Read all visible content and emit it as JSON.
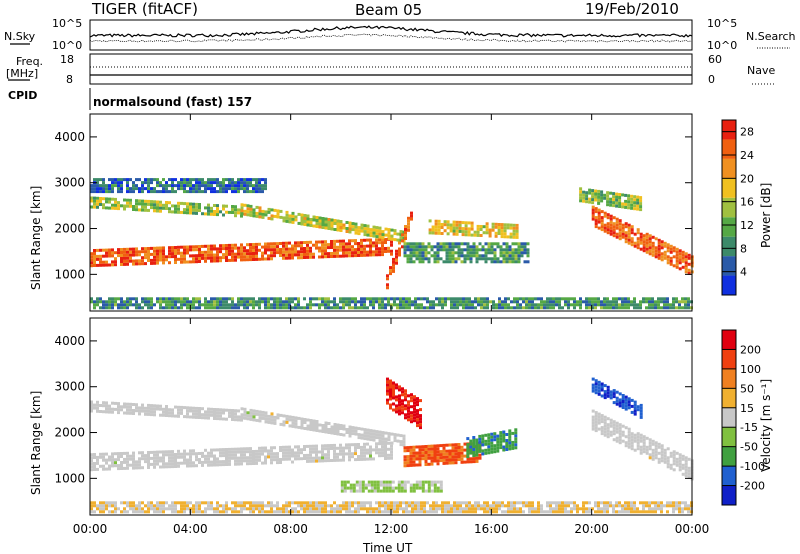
{
  "header": {
    "radar": "TIGER (fitACF)",
    "beam": "Beam 05",
    "date": "19/Feb/2010"
  },
  "params": {
    "nsky_label": "N.Sky",
    "nsky_ticks": [
      "10^5",
      "10^0"
    ],
    "nsearch_label": "N.Search",
    "nsearch_ticks": [
      "10^5",
      "10^0"
    ],
    "freq_label": "Freq.",
    "freq_unit": "[MHz]",
    "freq_ticks": [
      "18",
      "8"
    ],
    "nave_label": "Nave",
    "nave_ticks": [
      "60",
      "0"
    ],
    "cpid_label": "CPID",
    "cpid_value": "normalsound (fast) 157"
  },
  "colors": {
    "power_scale": [
      "#1030e0",
      "#2a5aa8",
      "#3c8a6a",
      "#55a845",
      "#a0c040",
      "#f0c020",
      "#f09020",
      "#f06010",
      "#e82010"
    ],
    "velocity_scale": [
      "#1020c8",
      "#2060d0",
      "#40a040",
      "#80c040",
      "#c8c8c8",
      "#f0b030",
      "#f08020",
      "#f04010",
      "#e00010"
    ]
  },
  "chart_data": [
    {
      "type": "heatmap",
      "panel": "power",
      "ylabel": "Slant Range [km]",
      "ylim": [
        200,
        4500
      ],
      "yticks": [
        "1000",
        "2000",
        "3000",
        "4000"
      ],
      "xlim_hours": [
        0,
        24
      ],
      "colorbar": {
        "label": "Power [dB]",
        "ticks": [
          "4",
          "8",
          "12",
          "16",
          "20",
          "24",
          "28"
        ],
        "range": [
          0,
          30
        ]
      },
      "bands": [
        {
          "t": [
            0,
            12
          ],
          "r_start": [
            1200,
            1450
          ],
          "width": 350,
          "value": 25
        },
        {
          "t": [
            0,
            6
          ],
          "r_start": [
            2500,
            2300
          ],
          "width": 200,
          "value": 14
        },
        {
          "t": [
            6,
            12.5
          ],
          "r_start": [
            2300,
            1700
          ],
          "width": 250,
          "value": 16
        },
        {
          "t": [
            11.8,
            12.8
          ],
          "r_start": [
            700,
            2200
          ],
          "width": 300,
          "value": 27
        },
        {
          "t": [
            12.5,
            17.5
          ],
          "r_start": [
            1300,
            1300
          ],
          "width": 400,
          "value": 10
        },
        {
          "t": [
            13.5,
            17
          ],
          "r_start": [
            1900,
            1800
          ],
          "width": 300,
          "value": 18
        },
        {
          "t": [
            20,
            24
          ],
          "r_start": [
            2100,
            1000
          ],
          "width": 400,
          "value": 25
        },
        {
          "t": [
            19.5,
            22
          ],
          "r_start": [
            2600,
            2400
          ],
          "width": 300,
          "value": 13
        },
        {
          "t": [
            0,
            24
          ],
          "r_start": [
            250,
            250
          ],
          "width": 250,
          "value": 9
        },
        {
          "t": [
            0,
            7
          ],
          "r_start": [
            2800,
            2800
          ],
          "width": 300,
          "value": 6
        }
      ]
    },
    {
      "type": "heatmap",
      "panel": "velocity",
      "ylabel": "Slant Range [km]",
      "ylim": [
        200,
        4500
      ],
      "yticks": [
        "1000",
        "2000",
        "3000",
        "4000"
      ],
      "xlim_hours": [
        0,
        24
      ],
      "xlabel": "Time UT",
      "xticks": [
        "00:00",
        "04:00",
        "08:00",
        "12:00",
        "16:00",
        "20:00",
        "00:00"
      ],
      "colorbar": {
        "label": "Velocity [m s⁻¹]",
        "ticks": [
          "200",
          "100",
          "50",
          "15",
          "-15",
          "-50",
          "-100",
          "-200"
        ],
        "range": [
          -250,
          250
        ]
      },
      "bands": [
        {
          "t": [
            0,
            12
          ],
          "r_start": [
            1200,
            1450
          ],
          "width": 350,
          "value": 0
        },
        {
          "t": [
            0,
            6
          ],
          "r_start": [
            2500,
            2300
          ],
          "width": 200,
          "value": 0
        },
        {
          "t": [
            6,
            12.5
          ],
          "r_start": [
            2300,
            1700
          ],
          "width": 250,
          "value": 0
        },
        {
          "t": [
            11.8,
            13.2
          ],
          "r_start": [
            2600,
            2100
          ],
          "width": 600,
          "value": 200
        },
        {
          "t": [
            12.5,
            15.5
          ],
          "r_start": [
            1300,
            1400
          ],
          "width": 400,
          "value": 150
        },
        {
          "t": [
            15,
            17
          ],
          "r_start": [
            1500,
            1700
          ],
          "width": 400,
          "value": -120
        },
        {
          "t": [
            20,
            24
          ],
          "r_start": [
            2100,
            1000
          ],
          "width": 400,
          "value": 0
        },
        {
          "t": [
            20,
            22
          ],
          "r_start": [
            2900,
            2300
          ],
          "width": 300,
          "value": -180
        },
        {
          "t": [
            0,
            24
          ],
          "r_start": [
            250,
            250
          ],
          "width": 250,
          "value": 30
        },
        {
          "t": [
            10,
            14
          ],
          "r_start": [
            700,
            700
          ],
          "width": 250,
          "value": -40
        }
      ]
    }
  ],
  "time_axis": {
    "xlabel": "Time UT",
    "xticks": [
      "00:00",
      "04:00",
      "08:00",
      "12:00",
      "16:00",
      "20:00",
      "00:00"
    ]
  }
}
